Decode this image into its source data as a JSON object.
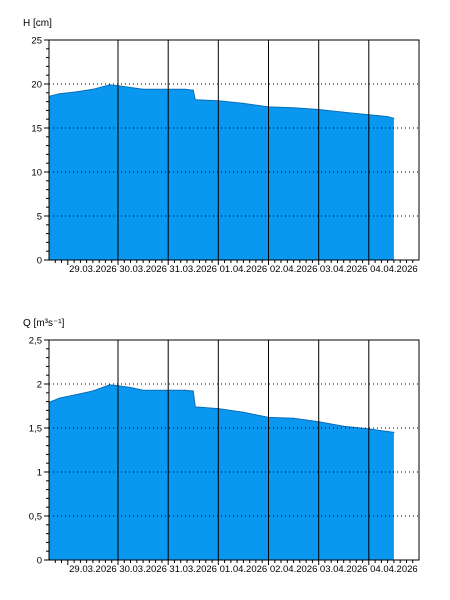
{
  "colors": {
    "fill": "#0a97f0",
    "axis": "#000000",
    "grid": "#000000",
    "background": "#ffffff"
  },
  "chart_data": [
    {
      "type": "area",
      "ylabel": "H [cm]",
      "ylim": [
        0,
        25
      ],
      "y_ticks": [
        "0",
        "5",
        "10",
        "15",
        "20",
        "25"
      ],
      "y_tick_values": [
        0,
        5,
        10,
        15,
        20,
        25
      ],
      "x_tick_labels": [
        "29.03.2026",
        "30.03.2026",
        "31.03.2026",
        "01.04.2026",
        "02.04.2026",
        "03.04.2026",
        "04.04.2026"
      ],
      "xlim": [
        "2026-03-28T15:00",
        "2026-04-05T00:00"
      ],
      "grid": {
        "vertical": "solid at midnight",
        "horizontal": "dotted"
      },
      "x": [
        "2026-03-28T15:00",
        "2026-03-28T20:00",
        "2026-03-29T04:00",
        "2026-03-29T12:00",
        "2026-03-29T20:00",
        "2026-03-30T00:00",
        "2026-03-30T06:00",
        "2026-03-30T12:00",
        "2026-03-31T00:00",
        "2026-03-31T08:00",
        "2026-03-31T12:00",
        "2026-03-31T13:00",
        "2026-04-01T00:00",
        "2026-04-01T12:00",
        "2026-04-02T00:00",
        "2026-04-02T12:00",
        "2026-04-03T00:00",
        "2026-04-03T12:00",
        "2026-04-04T00:00",
        "2026-04-04T09:00",
        "2026-04-04T12:00"
      ],
      "values": [
        18.6,
        18.9,
        19.1,
        19.4,
        19.9,
        19.8,
        19.6,
        19.4,
        19.4,
        19.4,
        19.3,
        18.2,
        18.1,
        17.8,
        17.4,
        17.3,
        17.1,
        16.8,
        16.5,
        16.3,
        16.1
      ]
    },
    {
      "type": "area",
      "ylabel": "Q [m³s⁻¹]",
      "ylim": [
        0,
        2.5
      ],
      "y_ticks": [
        "0",
        "0,5",
        "1",
        "1,5",
        "2",
        "2,5"
      ],
      "y_tick_values": [
        0,
        0.5,
        1,
        1.5,
        2,
        2.5
      ],
      "x_tick_labels": [
        "29.03.2026",
        "30.03.2026",
        "31.03.2026",
        "01.04.2026",
        "02.04.2026",
        "03.04.2026",
        "04.04.2026"
      ],
      "xlim": [
        "2026-03-28T15:00",
        "2026-04-05T00:00"
      ],
      "grid": {
        "vertical": "solid at midnight",
        "horizontal": "dotted"
      },
      "x": [
        "2026-03-28T15:00",
        "2026-03-28T20:00",
        "2026-03-29T04:00",
        "2026-03-29T12:00",
        "2026-03-29T20:00",
        "2026-03-30T00:00",
        "2026-03-30T06:00",
        "2026-03-30T12:00",
        "2026-03-31T00:00",
        "2026-03-31T08:00",
        "2026-03-31T12:00",
        "2026-03-31T13:00",
        "2026-04-01T00:00",
        "2026-04-01T12:00",
        "2026-04-02T00:00",
        "2026-04-02T12:00",
        "2026-04-03T00:00",
        "2026-04-03T12:00",
        "2026-04-04T00:00",
        "2026-04-04T09:00",
        "2026-04-04T12:00"
      ],
      "values": [
        1.79,
        1.84,
        1.88,
        1.92,
        1.99,
        1.98,
        1.96,
        1.93,
        1.93,
        1.93,
        1.92,
        1.74,
        1.72,
        1.68,
        1.62,
        1.61,
        1.57,
        1.52,
        1.49,
        1.46,
        1.45
      ]
    }
  ]
}
